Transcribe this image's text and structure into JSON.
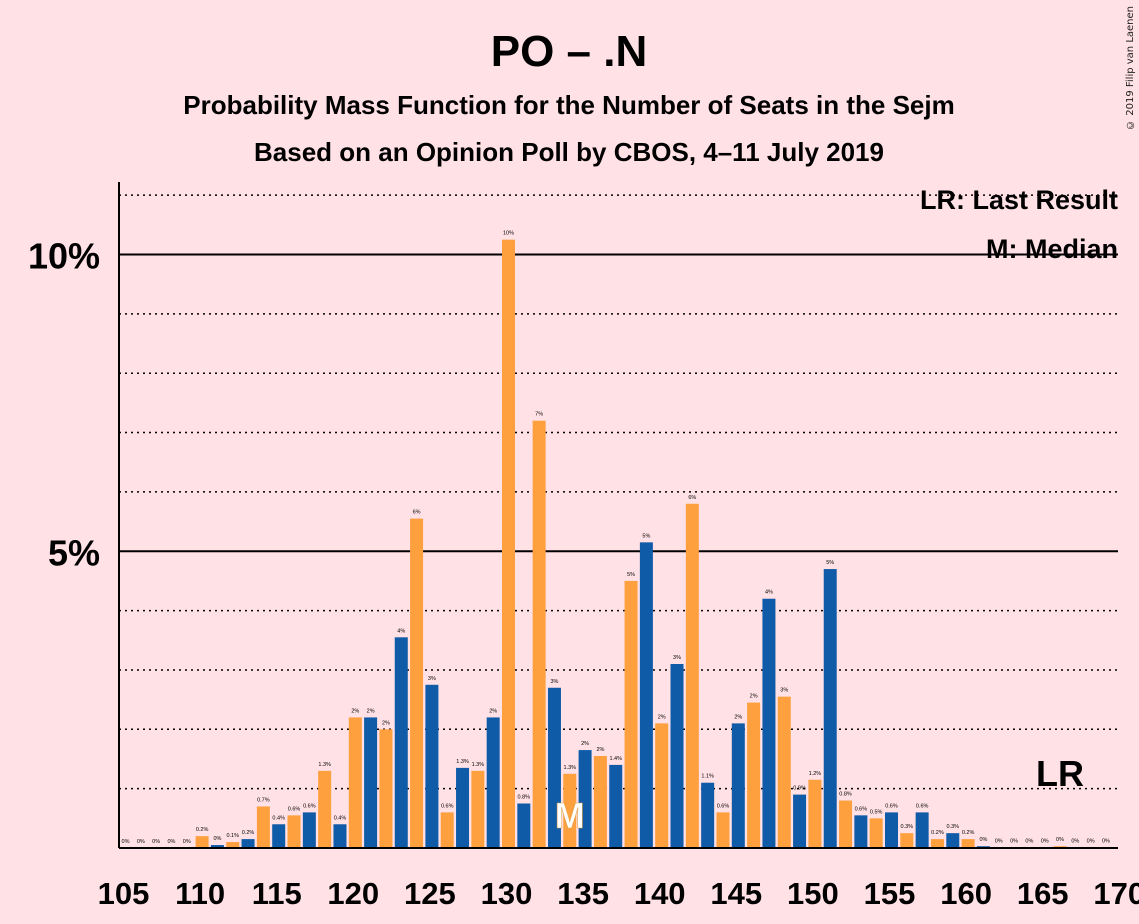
{
  "chart_data": {
    "type": "bar",
    "title": "PO – .N",
    "subtitle1": "Probability Mass Function for the Number of Seats in the Sejm",
    "subtitle2": "Based on an Opinion Poll by CBOS, 4–11 July 2019",
    "xlabel": "",
    "ylabel": "",
    "xlim": [
      105,
      170
    ],
    "ylim": [
      0,
      11.2
    ],
    "y_ticks": [
      {
        "value": 5,
        "label": "5%"
      },
      {
        "value": 10,
        "label": "10%"
      }
    ],
    "x_ticks": [
      105,
      110,
      115,
      120,
      125,
      130,
      135,
      140,
      145,
      150,
      155,
      160,
      165,
      170
    ],
    "seats": [
      105,
      106,
      107,
      108,
      109,
      110,
      111,
      112,
      113,
      114,
      115,
      116,
      117,
      118,
      119,
      120,
      121,
      122,
      123,
      124,
      125,
      126,
      127,
      128,
      129,
      130,
      131,
      132,
      133,
      134,
      135,
      136,
      137,
      138,
      139,
      140,
      141,
      142,
      143,
      144,
      145,
      146,
      147,
      148,
      149,
      150,
      151,
      152,
      153,
      154,
      155,
      156,
      157,
      158,
      159,
      160,
      161,
      162,
      163,
      164,
      165,
      166,
      167,
      168,
      169
    ],
    "values": [
      0,
      0,
      0,
      0,
      0,
      0.2,
      0.05,
      0.1,
      0.15,
      0.7,
      0.4,
      0.55,
      0.6,
      1.3,
      0.4,
      2.2,
      2.2,
      2.0,
      3.55,
      5.55,
      2.75,
      0.6,
      1.35,
      1.3,
      2.2,
      10.25,
      0.75,
      7.2,
      2.7,
      1.25,
      1.65,
      1.55,
      1.4,
      4.5,
      5.15,
      2.1,
      3.1,
      5.8,
      1.1,
      0.6,
      2.1,
      2.45,
      4.2,
      2.55,
      0.9,
      1.15,
      4.7,
      0.8,
      0.55,
      0.5,
      0.6,
      0.25,
      0.6,
      0.15,
      0.25,
      0.15,
      0.03,
      0.01,
      0.01,
      0.01,
      0.01,
      0.03,
      0.01,
      0.01,
      0.01
    ],
    "labels": [
      "0%",
      "0%",
      "0%",
      "0%",
      "0%",
      "0.2%",
      "0%",
      "0.1%",
      "0.2%",
      "0.7%",
      "0.4%",
      "0.6%",
      "0.6%",
      "1.3%",
      "0.4%",
      "2%",
      "2%",
      "2%",
      "4%",
      "6%",
      "3%",
      "0.6%",
      "1.3%",
      "1.3%",
      "2%",
      "10%",
      "0.8%",
      "7%",
      "3%",
      "1.3%",
      "2%",
      "2%",
      "1.4%",
      "5%",
      "5%",
      "2%",
      "3%",
      "6%",
      "1.1%",
      "0.6%",
      "2%",
      "2%",
      "4%",
      "3%",
      "0.9%",
      "1.2%",
      "5%",
      "0.8%",
      "0.6%",
      "0.5%",
      "0.6%",
      "0.3%",
      "0.6%",
      "0.2%",
      "0.3%",
      "0.2%",
      "0%",
      "0%",
      "0%",
      "0%",
      "0%",
      "0%",
      "0%",
      "0%",
      "0%"
    ],
    "colors": {
      "odd": "#0F5BA8",
      "even": "#FFA03F",
      "background": "#FFE1E6",
      "axis": "#000000"
    },
    "median": {
      "seat": 134,
      "label": "M"
    },
    "last_result": {
      "seat": 166,
      "label": "LR"
    },
    "legend": {
      "position": "top-right",
      "entries": [
        "LR: Last Result",
        "M: Median"
      ]
    },
    "grid": "dotted horizontal every 1%, solid at 5% and 10%"
  },
  "copyright": "© 2019 Filip van Laenen"
}
